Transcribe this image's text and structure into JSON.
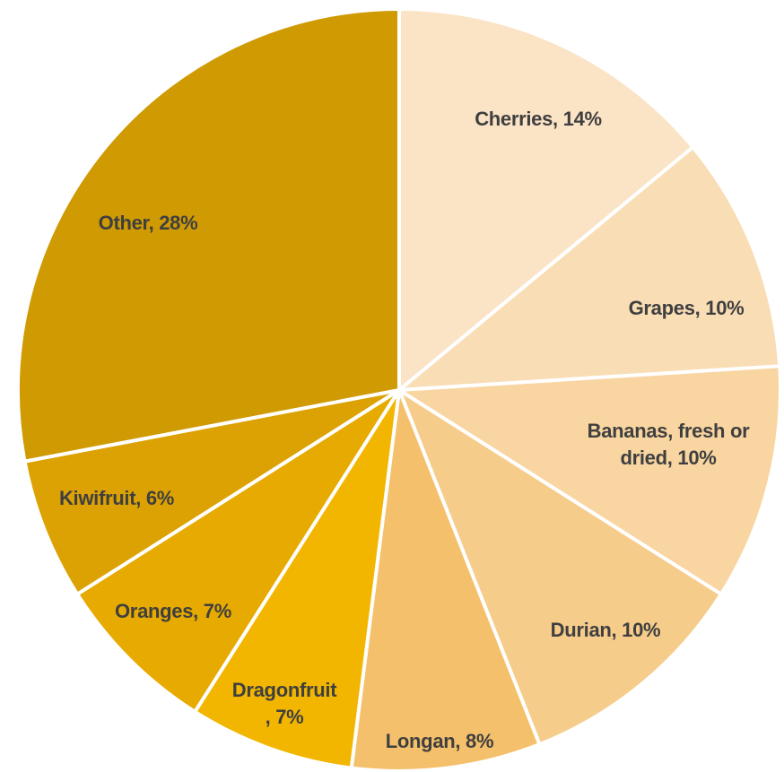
{
  "chart_data": {
    "type": "pie",
    "title": "",
    "direction": "clockwise",
    "start": "12 o'clock",
    "slices": [
      {
        "label": "Cherries",
        "value": 14,
        "text_lines": [
          "Cherries, 14%"
        ],
        "color": "#FBE3C6"
      },
      {
        "label": "Grapes",
        "value": 10,
        "text_lines": [
          "Grapes, 10%"
        ],
        "color": "#F9DDB5"
      },
      {
        "label": "Bananas, fresh or dried",
        "value": 10,
        "text_lines": [
          "Bananas, fresh or",
          "dried, 10%"
        ],
        "color": "#F8D5A1"
      },
      {
        "label": "Durian",
        "value": 10,
        "text_lines": [
          "Durian, 10%"
        ],
        "color": "#F6CC8B"
      },
      {
        "label": "Longan",
        "value": 8,
        "text_lines": [
          "Longan, 8%"
        ],
        "color": "#F4C06B"
      },
      {
        "label": "Dragonfruit",
        "value": 7,
        "text_lines": [
          "Dragonfruit",
          ", 7%"
        ],
        "color": "#F2B600"
      },
      {
        "label": "Oranges",
        "value": 7,
        "text_lines": [
          "Oranges, 7%"
        ],
        "color": "#E6AA00"
      },
      {
        "label": "Kiwifruit",
        "value": 6,
        "text_lines": [
          "Kiwifruit, 6%"
        ],
        "color": "#DCA203"
      },
      {
        "label": "Other",
        "value": 28,
        "text_lines": [
          "Other, 28%"
        ],
        "color": "#CF9A02"
      }
    ],
    "label_color": "#3F3F3F",
    "separator_color": "#FFFFFF"
  }
}
